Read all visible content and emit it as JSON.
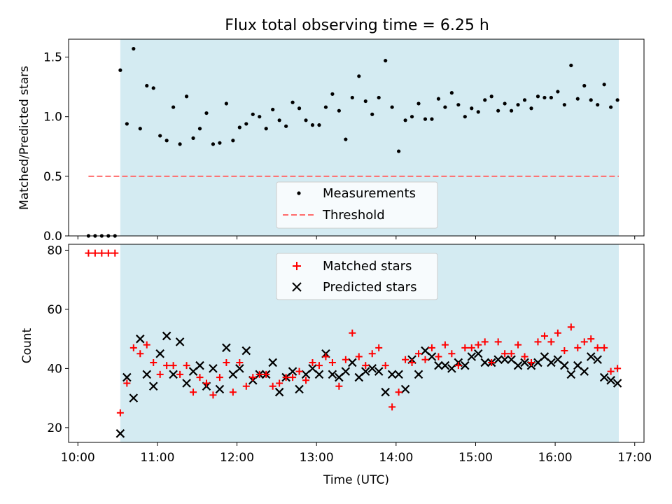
{
  "figure": {
    "title": "Flux total observing time = 6.25 h",
    "xlabel": "Time (UTC)"
  },
  "colors": {
    "shade": "#add8e6",
    "measurements": "#000000",
    "threshold": "#ff6b6b",
    "matched": "#ff0000",
    "predicted": "#000000"
  },
  "chart_data": [
    {
      "type": "scatter",
      "title": "Flux total observing time = 6.25 h",
      "xlabel": "",
      "ylabel": "Matched/Predicted stars",
      "xlim": [
        "09:53",
        "17:07"
      ],
      "ylim": [
        0,
        1.65
      ],
      "yticks": [
        "0.0",
        "0.5",
        "1.0",
        "1.5"
      ],
      "shaded_span": [
        "10:32",
        "16:48"
      ],
      "legend": {
        "placement": "lower-center",
        "entries": [
          "Measurements",
          "Threshold"
        ]
      },
      "threshold": {
        "name": "Threshold",
        "y": 0.5,
        "x": [
          "10:08",
          "16:48"
        ],
        "style": "dashed"
      },
      "series": [
        {
          "name": "Measurements",
          "marker": "dot",
          "x": [
            "10:08",
            "10:13",
            "10:18",
            "10:23",
            "10:28",
            "10:32",
            "10:37",
            "10:42",
            "10:47",
            "10:52",
            "10:57",
            "11:02",
            "11:07",
            "11:12",
            "11:17",
            "11:22",
            "11:27",
            "11:32",
            "11:37",
            "11:42",
            "11:47",
            "11:52",
            "11:57",
            "12:02",
            "12:07",
            "12:12",
            "12:17",
            "12:22",
            "12:27",
            "12:32",
            "12:37",
            "12:42",
            "12:47",
            "12:52",
            "12:57",
            "13:02",
            "13:07",
            "13:12",
            "13:17",
            "13:22",
            "13:27",
            "13:32",
            "13:37",
            "13:42",
            "13:47",
            "13:52",
            "13:57",
            "14:02",
            "14:07",
            "14:12",
            "14:17",
            "14:22",
            "14:27",
            "14:32",
            "14:37",
            "14:42",
            "14:47",
            "14:52",
            "14:57",
            "15:02",
            "15:07",
            "15:12",
            "15:17",
            "15:22",
            "15:27",
            "15:32",
            "15:37",
            "15:42",
            "15:47",
            "15:52",
            "15:57",
            "16:02",
            "16:07",
            "16:12",
            "16:17",
            "16:22",
            "16:27",
            "16:32",
            "16:37",
            "16:42",
            "16:47"
          ],
          "y": [
            0,
            0,
            0,
            0,
            0,
            1.39,
            0.94,
            1.57,
            0.9,
            1.26,
            1.24,
            0.84,
            0.8,
            1.08,
            0.77,
            1.17,
            0.82,
            0.9,
            1.03,
            0.77,
            0.78,
            1.11,
            0.8,
            0.91,
            0.94,
            1.02,
            1.0,
            0.9,
            1.06,
            0.97,
            0.92,
            1.12,
            1.07,
            0.97,
            0.93,
            0.93,
            1.08,
            1.19,
            1.05,
            0.81,
            1.16,
            1.34,
            1.13,
            1.02,
            1.16,
            1.47,
            1.08,
            0.71,
            0.97,
            1.0,
            1.11,
            0.98,
            0.98,
            1.15,
            1.08,
            1.2,
            1.1,
            1.0,
            1.07,
            1.04,
            1.14,
            1.17,
            1.05,
            1.11,
            1.05,
            1.1,
            1.14,
            1.07,
            1.17,
            1.16,
            1.16,
            1.21,
            1.1,
            1.43,
            1.15,
            1.26,
            1.14,
            1.1,
            1.27,
            1.08,
            1.14
          ]
        }
      ]
    },
    {
      "type": "scatter",
      "xlabel": "Time (UTC)",
      "ylabel": "Count",
      "xlim": [
        "09:53",
        "17:07"
      ],
      "ylim": [
        15,
        82
      ],
      "yticks": [
        "20",
        "40",
        "60",
        "80"
      ],
      "xticks": [
        "10:00",
        "11:00",
        "12:00",
        "13:00",
        "14:00",
        "15:00",
        "16:00",
        "17:00"
      ],
      "shaded_span": [
        "10:32",
        "16:48"
      ],
      "legend": {
        "placement": "upper-center",
        "entries": [
          "Matched stars",
          "Predicted stars"
        ]
      },
      "series": [
        {
          "name": "Matched stars",
          "marker": "plus",
          "x": [
            "10:08",
            "10:13",
            "10:18",
            "10:23",
            "10:28",
            "10:32",
            "10:37",
            "10:42",
            "10:47",
            "10:52",
            "10:57",
            "11:02",
            "11:07",
            "11:12",
            "11:17",
            "11:22",
            "11:27",
            "11:32",
            "11:37",
            "11:42",
            "11:47",
            "11:52",
            "11:57",
            "12:02",
            "12:07",
            "12:12",
            "12:17",
            "12:22",
            "12:27",
            "12:32",
            "12:37",
            "12:42",
            "12:47",
            "12:52",
            "12:57",
            "13:02",
            "13:07",
            "13:12",
            "13:17",
            "13:22",
            "13:27",
            "13:32",
            "13:37",
            "13:42",
            "13:47",
            "13:52",
            "13:57",
            "14:02",
            "14:07",
            "14:12",
            "14:17",
            "14:22",
            "14:27",
            "14:32",
            "14:37",
            "14:42",
            "14:47",
            "14:52",
            "14:57",
            "15:02",
            "15:07",
            "15:12",
            "15:17",
            "15:22",
            "15:27",
            "15:32",
            "15:37",
            "15:42",
            "15:47",
            "15:52",
            "15:57",
            "16:02",
            "16:07",
            "16:12",
            "16:17",
            "16:22",
            "16:27",
            "16:32",
            "16:37",
            "16:42",
            "16:47"
          ],
          "y": [
            79,
            79,
            79,
            79,
            79,
            25,
            35,
            47,
            45,
            48,
            42,
            38,
            41,
            41,
            38,
            41,
            32,
            37,
            35,
            31,
            37,
            42,
            32,
            42,
            34,
            37,
            38,
            38,
            34,
            35,
            37,
            37,
            39,
            36,
            42,
            41,
            44,
            42,
            34,
            43,
            52,
            44,
            41,
            45,
            47,
            41,
            27,
            32,
            43,
            42,
            45,
            43,
            47,
            44,
            48,
            45,
            41,
            47,
            47,
            48,
            49,
            42,
            49,
            45,
            45,
            48,
            44,
            42,
            49,
            51,
            49,
            52,
            46,
            54,
            47,
            49,
            50,
            47,
            47,
            39,
            40
          ]
        },
        {
          "name": "Predicted stars",
          "marker": "x",
          "x": [
            "10:32",
            "10:37",
            "10:42",
            "10:47",
            "10:52",
            "10:57",
            "11:02",
            "11:07",
            "11:12",
            "11:17",
            "11:22",
            "11:27",
            "11:32",
            "11:37",
            "11:42",
            "11:47",
            "11:52",
            "11:57",
            "12:02",
            "12:07",
            "12:12",
            "12:17",
            "12:22",
            "12:27",
            "12:32",
            "12:37",
            "12:42",
            "12:47",
            "12:52",
            "12:57",
            "13:02",
            "13:07",
            "13:12",
            "13:17",
            "13:22",
            "13:27",
            "13:32",
            "13:37",
            "13:42",
            "13:47",
            "13:52",
            "13:57",
            "14:02",
            "14:07",
            "14:12",
            "14:17",
            "14:22",
            "14:27",
            "14:32",
            "14:37",
            "14:42",
            "14:47",
            "14:52",
            "14:57",
            "15:02",
            "15:07",
            "15:12",
            "15:17",
            "15:22",
            "15:27",
            "15:32",
            "15:37",
            "15:42",
            "15:47",
            "15:52",
            "15:57",
            "16:02",
            "16:07",
            "16:12",
            "16:17",
            "16:22",
            "16:27",
            "16:32",
            "16:37",
            "16:42",
            "16:47"
          ],
          "y": [
            18,
            37,
            30,
            50,
            38,
            34,
            45,
            51,
            38,
            49,
            35,
            39,
            41,
            34,
            40,
            33,
            47,
            38,
            40,
            46,
            36,
            38,
            38,
            42,
            32,
            37,
            39,
            33,
            38,
            40,
            38,
            45,
            38,
            37,
            39,
            42,
            37,
            39,
            40,
            39,
            32,
            38,
            38,
            33,
            43,
            38,
            46,
            44,
            41,
            41,
            40,
            42,
            41,
            44,
            45,
            42,
            42,
            43,
            43,
            43,
            41,
            42,
            41,
            42,
            44,
            42,
            43,
            41,
            38,
            41,
            39,
            44,
            43,
            37,
            36,
            35
          ]
        }
      ]
    }
  ]
}
